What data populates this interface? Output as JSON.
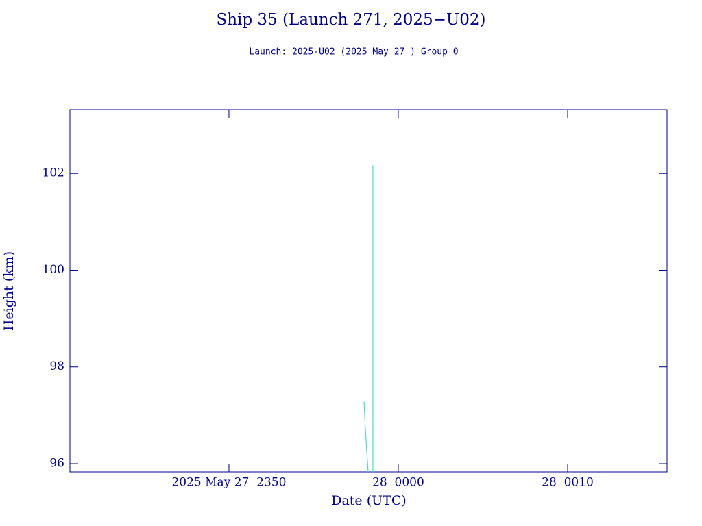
{
  "chart_data": {
    "type": "line",
    "title": "Ship 35 (Launch 271, 2025−U02)",
    "subtitle": "Launch: 2025-U02  (2025 May 27 )  Group 0",
    "x_label": "Date (UTC)",
    "y_label": "Height (km)",
    "x": [
      1437.98,
      1438.05,
      1438.15,
      1438.22,
      1438.3,
      1438.5,
      1438.5
    ],
    "series": [
      {
        "color": "#40e0d0",
        "values": [
          97.28,
          96.75,
          96.2,
          95.83,
          null,
          95.83,
          102.17
        ]
      }
    ],
    "xlim": [
      1420.61,
      1455.87
    ],
    "xticks": [
      {
        "value": 1430,
        "label": "2025 May 27  2350"
      },
      {
        "value": 1440,
        "label": "28  0000"
      },
      {
        "value": 1450,
        "label": "28  0010"
      }
    ],
    "ylim": [
      95.83,
      103.32
    ],
    "yticks": [
      96,
      98,
      100,
      102
    ],
    "text_color": "#00008b"
  }
}
